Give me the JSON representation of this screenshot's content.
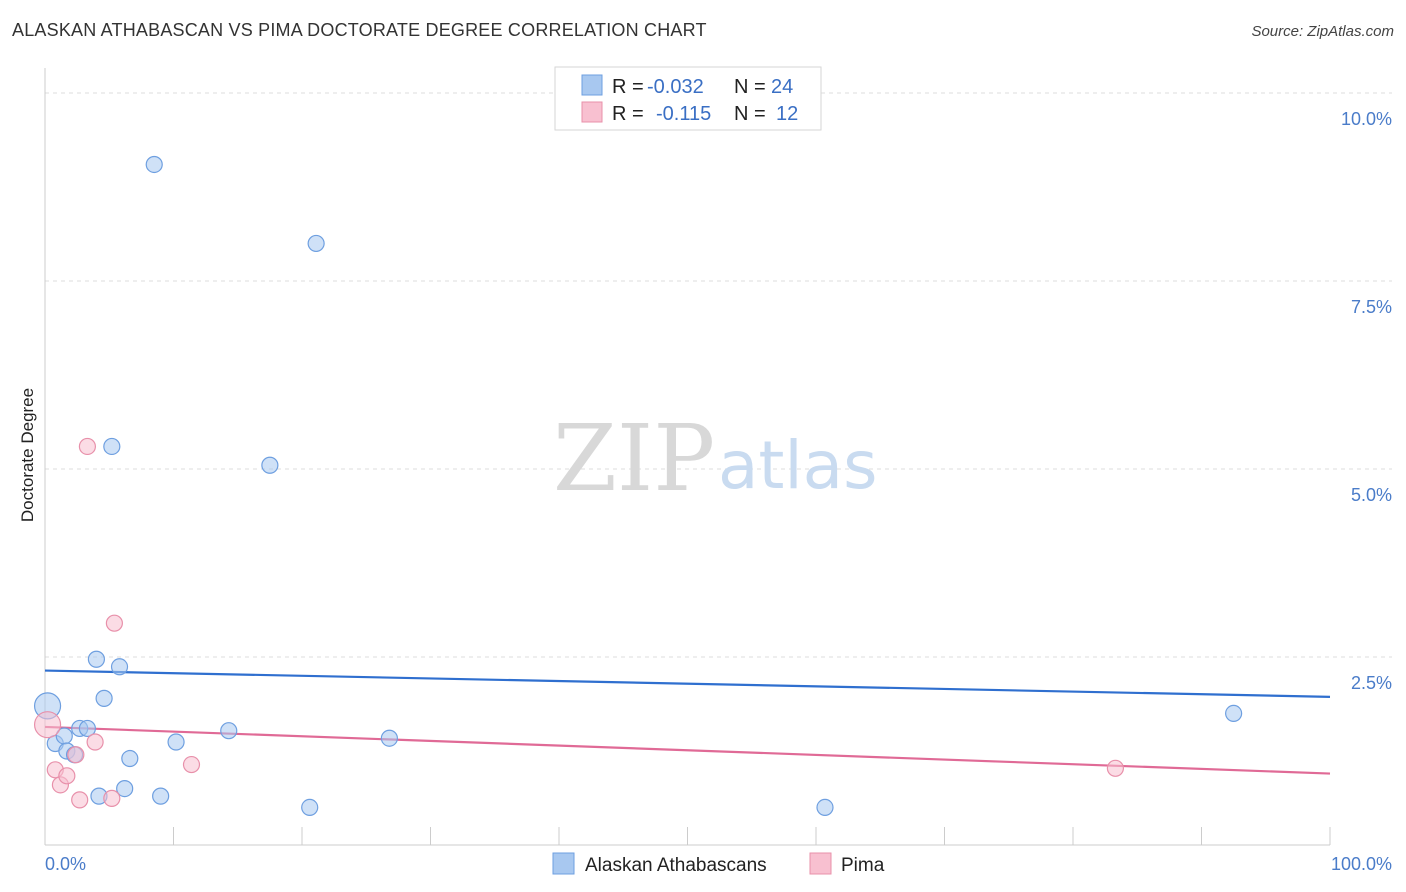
{
  "header": {
    "title": "ALASKAN ATHABASCAN VS PIMA DOCTORATE DEGREE CORRELATION CHART",
    "source": "Source: ZipAtlas.com"
  },
  "watermark": {
    "zip": "ZIP",
    "atlas": "atlas"
  },
  "legend": {
    "rows": [
      {
        "r_label": "R =",
        "r_value": "-0.032",
        "n_label": "N =",
        "n_value": "24",
        "color": "#a8c8f0",
        "stroke": "#6e9fe0"
      },
      {
        "r_label": "R =",
        "r_value": "-0.115",
        "n_label": "N =",
        "n_value": "12",
        "color": "#f8c0d0",
        "stroke": "#e890aa"
      }
    ]
  },
  "bottom_legend": {
    "items": [
      {
        "label": "Alaskan Athabascans",
        "color": "#a8c8f0",
        "stroke": "#6e9fe0"
      },
      {
        "label": "Pima",
        "color": "#f8c0d0",
        "stroke": "#e890aa"
      }
    ]
  },
  "chart_data": {
    "type": "scatter",
    "title": "ALASKAN ATHABASCAN VS PIMA DOCTORATE DEGREE CORRELATION CHART",
    "xlabel": "",
    "ylabel": "Doctorate Degree",
    "xlim": [
      0,
      100
    ],
    "ylim": [
      0,
      10.2
    ],
    "x_ticks": [
      {
        "value": 0,
        "label": "0.0%"
      },
      {
        "value": 100,
        "label": "100.0%"
      }
    ],
    "y_ticks": [
      {
        "value": 2.5,
        "label": "2.5%"
      },
      {
        "value": 5.0,
        "label": "5.0%"
      },
      {
        "value": 7.5,
        "label": "7.5%"
      },
      {
        "value": 10.0,
        "label": "10.0%"
      }
    ],
    "series": [
      {
        "name": "Alaskan Athabascans",
        "color": "#a8c8f0",
        "stroke": "#6e9fe0",
        "line_color": "#2f6fcf",
        "trend": {
          "x": [
            0,
            100
          ],
          "y": [
            2.32,
            1.97
          ]
        },
        "points": [
          {
            "x": 0.2,
            "y": 1.85,
            "size": "large"
          },
          {
            "x": 0.8,
            "y": 1.35
          },
          {
            "x": 1.5,
            "y": 1.45
          },
          {
            "x": 1.7,
            "y": 1.25
          },
          {
            "x": 2.3,
            "y": 1.2
          },
          {
            "x": 2.7,
            "y": 1.55
          },
          {
            "x": 3.3,
            "y": 1.55
          },
          {
            "x": 4.0,
            "y": 2.47
          },
          {
            "x": 4.6,
            "y": 1.95
          },
          {
            "x": 5.2,
            "y": 5.3
          },
          {
            "x": 5.8,
            "y": 2.37
          },
          {
            "x": 6.2,
            "y": 0.75
          },
          {
            "x": 6.6,
            "y": 1.15
          },
          {
            "x": 8.5,
            "y": 9.05
          },
          {
            "x": 9.0,
            "y": 0.65
          },
          {
            "x": 10.2,
            "y": 1.37
          },
          {
            "x": 14.3,
            "y": 1.52
          },
          {
            "x": 17.5,
            "y": 5.05
          },
          {
            "x": 20.6,
            "y": 0.5
          },
          {
            "x": 21.1,
            "y": 8.0
          },
          {
            "x": 26.8,
            "y": 1.42
          },
          {
            "x": 60.7,
            "y": 0.5
          },
          {
            "x": 92.5,
            "y": 1.75
          },
          {
            "x": 4.2,
            "y": 0.65
          }
        ]
      },
      {
        "name": "Pima",
        "color": "#f8c0d0",
        "stroke": "#e890aa",
        "line_color": "#e06a96",
        "trend": {
          "x": [
            0,
            100
          ],
          "y": [
            1.57,
            0.95
          ]
        },
        "points": [
          {
            "x": 0.2,
            "y": 1.6,
            "size": "large"
          },
          {
            "x": 0.8,
            "y": 1.0
          },
          {
            "x": 1.2,
            "y": 0.8
          },
          {
            "x": 1.7,
            "y": 0.92
          },
          {
            "x": 2.4,
            "y": 1.2
          },
          {
            "x": 2.7,
            "y": 0.6
          },
          {
            "x": 3.3,
            "y": 5.3
          },
          {
            "x": 3.9,
            "y": 1.37
          },
          {
            "x": 5.2,
            "y": 0.62
          },
          {
            "x": 5.4,
            "y": 2.95
          },
          {
            "x": 11.4,
            "y": 1.07
          },
          {
            "x": 83.3,
            "y": 1.02
          }
        ]
      }
    ]
  }
}
